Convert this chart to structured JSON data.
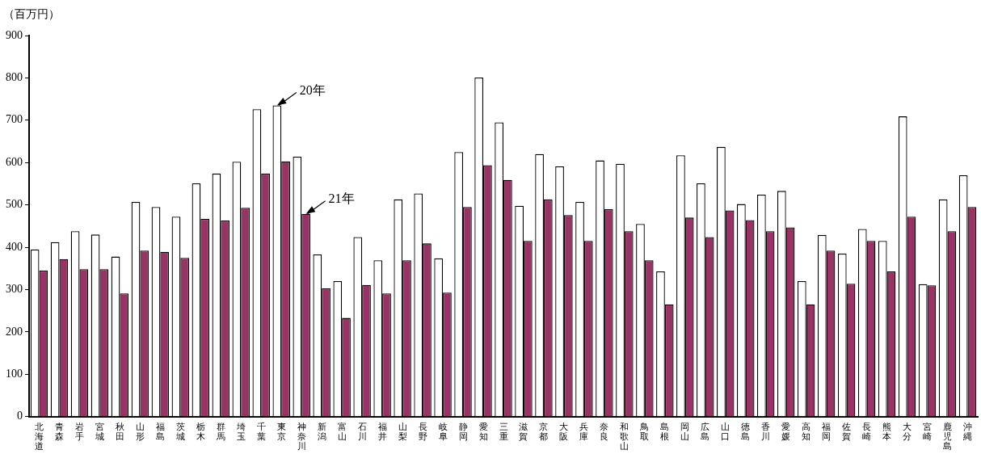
{
  "chart_data": {
    "type": "bar",
    "ylabel": "（百万円）",
    "categories": [
      "北海道",
      "青森",
      "岩手",
      "宮城",
      "秋田",
      "山形",
      "福島",
      "茨城",
      "栃木",
      "群馬",
      "埼玉",
      "千葉",
      "東京",
      "神奈川",
      "新潟",
      "富山",
      "石川",
      "福井",
      "山梨",
      "長野",
      "岐阜",
      "静岡",
      "愛知",
      "三重",
      "滋賀",
      "京都",
      "大阪",
      "兵庫",
      "奈良",
      "和歌山",
      "鳥取",
      "島根",
      "岡山",
      "広島",
      "山口",
      "徳島",
      "香川",
      "愛媛",
      "高知",
      "福岡",
      "佐賀",
      "長崎",
      "熊本",
      "大分",
      "宮崎",
      "鹿児島",
      "沖縄"
    ],
    "series": [
      {
        "color": "#ffffff",
        "values": [
          395,
          412,
          438,
          430,
          378,
          507,
          495,
          472,
          551,
          574,
          602,
          726,
          735,
          614,
          383,
          320,
          424,
          369,
          513,
          527,
          374,
          625,
          801,
          695,
          498,
          620,
          591,
          507,
          605,
          597,
          455,
          343,
          617,
          551,
          637,
          502,
          524,
          533,
          320,
          429,
          385,
          443,
          415,
          709,
          313,
          513,
          570
        ]
      },
      {
        "color": "#993366",
        "values": [
          345,
          372,
          348,
          348,
          291,
          392,
          389,
          375,
          467,
          463,
          493,
          574,
          603,
          479,
          303,
          233,
          311,
          291,
          369,
          409,
          293,
          495,
          594,
          559,
          415,
          513,
          476,
          415,
          490,
          438,
          369,
          265,
          470,
          424,
          487,
          464,
          438,
          447,
          265,
          392,
          314,
          415,
          343,
          472,
          310,
          438,
          495
        ]
      }
    ],
    "annotations": [
      {
        "text": "20年",
        "x": "東京",
        "y": 735
      },
      {
        "text": "21年",
        "x": "神奈川",
        "y": 479
      }
    ],
    "ylim": [
      0,
      900
    ],
    "yticks": [
      0,
      100,
      200,
      300,
      400,
      500,
      600,
      700,
      800,
      900
    ],
    "grid": false,
    "legend": false
  }
}
